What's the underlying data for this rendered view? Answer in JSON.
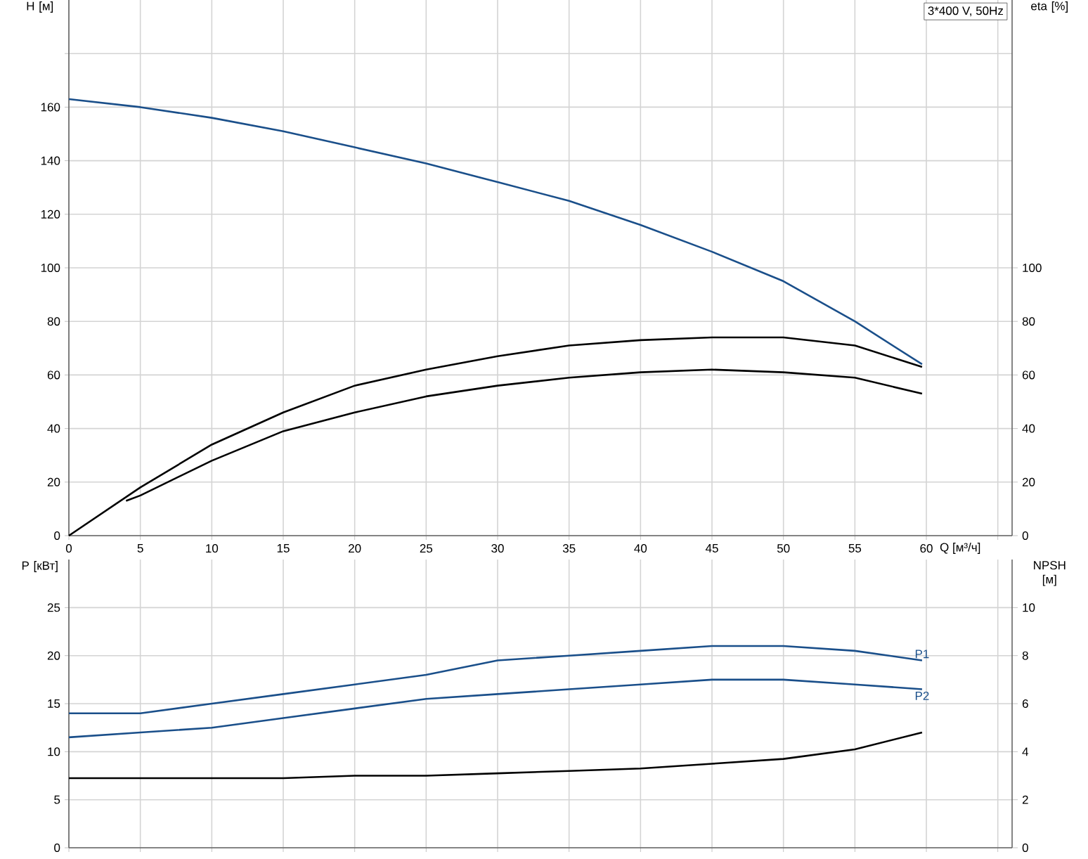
{
  "chart_data": [
    {
      "type": "line",
      "title": "3*400 V, 50Hz",
      "xlabel": "Q [м³/ч]",
      "ylabel": "H [м]",
      "y2label": "eta [%]",
      "grid": true,
      "line_style": "solid",
      "marker": "none",
      "xlim": [
        0,
        66
      ],
      "xticks": [
        0,
        5,
        10,
        15,
        20,
        25,
        30,
        35,
        40,
        45,
        50,
        55,
        60,
        {
          "value": 65,
          "label": null
        }
      ],
      "ylim": [
        0,
        200
      ],
      "yticks": [
        0,
        20,
        40,
        60,
        80,
        100,
        120,
        140,
        160,
        {
          "value": 180,
          "label": null
        }
      ],
      "y2lim": [
        0,
        200
      ],
      "y2ticks": [
        0,
        20,
        40,
        60,
        80,
        100
      ],
      "x": [
        0,
        5,
        10,
        15,
        20,
        25,
        30,
        35,
        40,
        45,
        50,
        55,
        59.7
      ],
      "series": [
        {
          "color": "#1a4f8a",
          "values": [
            163,
            160,
            156,
            151,
            145,
            139,
            132,
            125,
            116,
            106,
            95,
            80,
            64
          ]
        },
        {
          "color": "#000000",
          "axis": "y2",
          "values": [
            0,
            18,
            34,
            46,
            56,
            62,
            67,
            71,
            73,
            74,
            74,
            71,
            63
          ]
        },
        {
          "color": "#000000",
          "axis": "y2",
          "x": [
            4,
            5,
            10,
            15,
            20,
            25,
            30,
            35,
            40,
            45,
            50,
            55,
            59.7
          ],
          "values": [
            13,
            15,
            28,
            39,
            46,
            52,
            56,
            59,
            61,
            62,
            61,
            59,
            53
          ]
        }
      ]
    },
    {
      "type": "line",
      "ylabel": "P [кВт]",
      "y2label": "NPSH [м]",
      "grid": true,
      "line_style": "solid",
      "marker": "none",
      "tick_labels": "y",
      "xlim": [
        0,
        66
      ],
      "xticks": [
        0,
        5,
        10,
        15,
        20,
        25,
        30,
        35,
        40,
        45,
        50,
        55,
        60,
        65
      ],
      "ylim": [
        0,
        30
      ],
      "yticks": [
        0,
        5,
        10,
        15,
        20,
        25
      ],
      "y2lim": [
        0,
        12
      ],
      "y2ticks": [
        0,
        2,
        4,
        6,
        8,
        10
      ],
      "x": [
        0,
        5,
        10,
        15,
        20,
        25,
        30,
        35,
        40,
        45,
        50,
        55,
        59.7
      ],
      "series": [
        {
          "name": "P1",
          "color": "#1a4f8a",
          "values": [
            14,
            14,
            15,
            16,
            17,
            18,
            19.5,
            20,
            20.5,
            21,
            21,
            20.5,
            19.5
          ]
        },
        {
          "name": "P2",
          "color": "#1a4f8a",
          "values": [
            11.5,
            12,
            12.5,
            13.5,
            14.5,
            15.5,
            16,
            16.5,
            17,
            17.5,
            17.5,
            17,
            16.5
          ]
        },
        {
          "color": "#000000",
          "axis": "y2",
          "values": [
            2.9,
            2.9,
            2.9,
            2.9,
            3.0,
            3.0,
            3.1,
            3.2,
            3.3,
            3.5,
            3.7,
            4.1,
            4.8
          ]
        }
      ]
    }
  ]
}
